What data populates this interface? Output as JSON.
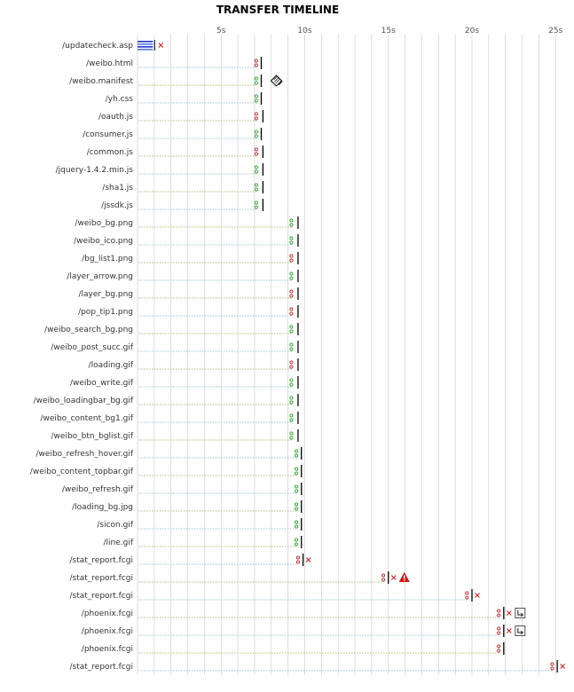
{
  "chart_data": {
    "type": "timeline",
    "title": "TRANSFER TIMELINE",
    "x_unit": "s",
    "xlim": [
      0,
      26
    ],
    "x_ticks": [
      {
        "value": 5,
        "label": "5s"
      },
      {
        "value": 10,
        "label": "10s"
      },
      {
        "value": 15,
        "label": "15s"
      },
      {
        "value": 20,
        "label": "20s"
      },
      {
        "value": 25,
        "label": "25s"
      }
    ],
    "colors": {
      "manifest_label": "#2e8b2e",
      "default_label": "#333333",
      "grid": "#c8c8c8",
      "row_odd": "#9ec4d4",
      "row_even": "#b8b880",
      "request": "#cc2222",
      "response": "#22aa22",
      "download": "#000000",
      "cancel": "#dd2222",
      "warning": "#dd1111"
    },
    "rows": [
      {
        "label": "/updatecheck.asp",
        "start": 0.0,
        "end": 0.6,
        "style": "blue-block",
        "cancelled": true
      },
      {
        "label": "/weibo.html",
        "start": 7.1,
        "end": 7.4,
        "style": "red"
      },
      {
        "label": "/weibo.manifest",
        "start": 7.1,
        "end": 7.4,
        "style": "green",
        "highlight": true,
        "icon": "manifest-icon"
      },
      {
        "label": "/yh.css",
        "start": 7.1,
        "end": 7.4,
        "style": "green"
      },
      {
        "label": "/oauth.js",
        "start": 7.1,
        "end": 7.5,
        "style": "red"
      },
      {
        "label": "/consumer.js",
        "start": 7.1,
        "end": 7.4,
        "style": "green"
      },
      {
        "label": "/common.js",
        "start": 7.1,
        "end": 7.5,
        "style": "red"
      },
      {
        "label": "/jquery-1.4.2.min.js",
        "start": 7.1,
        "end": 7.5,
        "style": "green"
      },
      {
        "label": "/sha1.js",
        "start": 7.1,
        "end": 7.5,
        "style": "green"
      },
      {
        "label": "/jssdk.js",
        "start": 7.1,
        "end": 7.5,
        "style": "green"
      },
      {
        "label": "/weibo_bg.png",
        "start": 9.2,
        "end": 9.6,
        "style": "green"
      },
      {
        "label": "/weibo_ico.png",
        "start": 9.2,
        "end": 9.6,
        "style": "green"
      },
      {
        "label": "/bg_list1.png",
        "start": 9.2,
        "end": 9.6,
        "style": "red"
      },
      {
        "label": "/layer_arrow.png",
        "start": 9.2,
        "end": 9.6,
        "style": "green"
      },
      {
        "label": "/layer_bg.png",
        "start": 9.2,
        "end": 9.6,
        "style": "red"
      },
      {
        "label": "/pop_tip1.png",
        "start": 9.2,
        "end": 9.6,
        "style": "red"
      },
      {
        "label": "/weibo_search_bg.png",
        "start": 9.2,
        "end": 9.6,
        "style": "green"
      },
      {
        "label": "/weibo_post_succ.gif",
        "start": 9.2,
        "end": 9.6,
        "style": "green"
      },
      {
        "label": "/loading.gif",
        "start": 9.2,
        "end": 9.6,
        "style": "red"
      },
      {
        "label": "/weibo_write.gif",
        "start": 9.2,
        "end": 9.6,
        "style": "green"
      },
      {
        "label": "/weibo_loadingbar_bg.gif",
        "start": 9.2,
        "end": 9.6,
        "style": "green"
      },
      {
        "label": "/weibo_content_bg1.gif",
        "start": 9.2,
        "end": 9.6,
        "style": "green"
      },
      {
        "label": "/weibo_btn_bglist.gif",
        "start": 9.2,
        "end": 9.6,
        "style": "green"
      },
      {
        "label": "/weibo_refresh_hover.gif",
        "start": 9.5,
        "end": 9.8,
        "style": "green"
      },
      {
        "label": "/weibo_content_topbar.gif",
        "start": 9.5,
        "end": 9.8,
        "style": "green"
      },
      {
        "label": "/weibo_refresh.gif",
        "start": 9.5,
        "end": 9.8,
        "style": "green"
      },
      {
        "label": "/loading_bg.jpg",
        "start": 9.5,
        "end": 9.8,
        "style": "green"
      },
      {
        "label": "/sicon.gif",
        "start": 9.5,
        "end": 9.8,
        "style": "green"
      },
      {
        "label": "/line.gif",
        "start": 9.5,
        "end": 9.8,
        "style": "green"
      },
      {
        "label": "/stat_report.fcgi",
        "start": 9.6,
        "end": 9.9,
        "style": "red",
        "cancelled": true
      },
      {
        "label": "/stat_report.fcgi",
        "start": 14.7,
        "end": 15.0,
        "style": "red",
        "cancelled": true,
        "icon": "warning-icon"
      },
      {
        "label": "/stat_report.fcgi",
        "start": 19.7,
        "end": 20.0,
        "style": "red",
        "cancelled": true
      },
      {
        "label": "/phoenix.fcgi",
        "start": 21.6,
        "end": 21.9,
        "style": "red",
        "cancelled": true,
        "icon": "redirect-icon"
      },
      {
        "label": "/phoenix.fcgi",
        "start": 21.6,
        "end": 21.9,
        "style": "red",
        "cancelled": true,
        "icon": "redirect-icon"
      },
      {
        "label": "/phoenix.fcgi",
        "start": 21.6,
        "end": 21.9,
        "style": "red"
      },
      {
        "label": "/stat_report.fcgi",
        "start": 24.8,
        "end": 25.1,
        "style": "red",
        "cancelled": true
      }
    ]
  }
}
